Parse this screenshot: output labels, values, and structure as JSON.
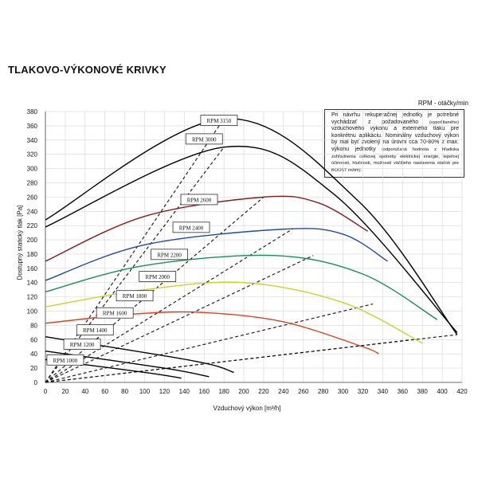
{
  "title": "TLAKOVO-VÝKONOVÉ KRIVKY",
  "note": {
    "header": "RPM - otáčky/min",
    "line1": "Pri návrhu rekuperačnej jednotky je potrebné vychádzať z požadovaného",
    "line1_small": "(vypočítaného)",
    "line2": "vzduchového výkonu a externého tlaku pre konkrétnu aplikáciu. Nominálny vzduchový výkon by mal byť zvolený na úrovni cca 70-80% z max. výkonu jednotky",
    "line2_small": "(odporúčaná hodnota z hľadiska zohľadnenia celkovej spotreby elektrickej energie, tepelnej účinnosti, hlučnosti, možnosti väčšieho nastavenia otáčok pre BOOST režim)."
  },
  "chart_data": {
    "type": "line",
    "xlabel": "Vzduchový výkon [m³/h]",
    "ylabel": "Dostupný statický tlak [Pa]",
    "xlim": [
      0,
      420
    ],
    "ylim": [
      0,
      380
    ],
    "xticks": [
      0,
      20,
      40,
      60,
      80,
      100,
      120,
      140,
      160,
      180,
      200,
      220,
      240,
      260,
      280,
      300,
      320,
      340,
      360,
      380,
      400,
      420
    ],
    "yticks": [
      0,
      20,
      40,
      60,
      80,
      100,
      120,
      140,
      160,
      180,
      200,
      220,
      240,
      260,
      280,
      300,
      320,
      340,
      360,
      380
    ],
    "grid": true,
    "fan_curves": [
      {
        "name": "RPM 1000",
        "color": "#000000",
        "points": [
          [
            0,
            32
          ],
          [
            100,
            14
          ],
          [
            137,
            6
          ]
        ]
      },
      {
        "name": "RPM 1200",
        "color": "#000000",
        "points": [
          [
            0,
            44
          ],
          [
            120,
            20
          ],
          [
            165,
            8
          ]
        ]
      },
      {
        "name": "RPM 1400",
        "color": "#000000",
        "points": [
          [
            0,
            64
          ],
          [
            150,
            30
          ],
          [
            190,
            14
          ]
        ]
      },
      {
        "name": "RPM 1600",
        "color": "#e2401d",
        "points": [
          [
            0,
            83
          ],
          [
            90,
            96
          ],
          [
            160,
            98
          ],
          [
            240,
            85
          ],
          [
            320,
            50
          ],
          [
            336,
            40
          ]
        ]
      },
      {
        "name": "RPM 1800",
        "color": "#c7d522",
        "points": [
          [
            0,
            106
          ],
          [
            100,
            130
          ],
          [
            200,
            140
          ],
          [
            300,
            112
          ],
          [
            380,
            55
          ]
        ]
      },
      {
        "name": "RPM 2000",
        "color": "#149154",
        "points": [
          [
            0,
            127
          ],
          [
            100,
            164
          ],
          [
            230,
            178
          ],
          [
            320,
            152
          ],
          [
            395,
            88
          ]
        ]
      },
      {
        "name": "RPM 2200",
        "color": "#1f4aa7",
        "points": [
          [
            0,
            143
          ],
          [
            100,
            193
          ],
          [
            240,
            215
          ],
          [
            300,
            208
          ],
          [
            345,
            170
          ]
        ]
      },
      {
        "name": "RPM 2400",
        "color": "#8b1a1a",
        "points": [
          [
            0,
            170
          ],
          [
            100,
            233
          ],
          [
            220,
            260
          ],
          [
            275,
            252
          ],
          [
            325,
            212
          ]
        ]
      },
      {
        "name": "RPM 3000",
        "color": "#000000",
        "points": [
          [
            0,
            218
          ],
          [
            180,
            330
          ],
          [
            290,
            265
          ],
          [
            415,
            70
          ]
        ]
      },
      {
        "name": "RPM 3150",
        "color": "#000000",
        "points": [
          [
            0,
            228
          ],
          [
            180,
            370
          ],
          [
            315,
            255
          ],
          [
            415,
            67
          ]
        ]
      }
    ],
    "system_curves": [
      {
        "points": [
          [
            0,
            0
          ],
          [
            180,
            370
          ]
        ]
      },
      {
        "points": [
          [
            0,
            0
          ],
          [
            180,
            330
          ]
        ]
      },
      {
        "points": [
          [
            0,
            0
          ],
          [
            220,
            260
          ]
        ]
      },
      {
        "points": [
          [
            0,
            0
          ],
          [
            250,
            216
          ]
        ]
      },
      {
        "points": [
          [
            0,
            0
          ],
          [
            270,
            178
          ]
        ]
      },
      {
        "points": [
          [
            0,
            0
          ],
          [
            330,
            110
          ]
        ]
      },
      {
        "points": [
          [
            0,
            0
          ],
          [
            370,
            60
          ]
        ]
      },
      {
        "points": [
          [
            0,
            0
          ],
          [
            415,
            67
          ]
        ]
      }
    ],
    "labels": [
      {
        "text": "RPM 3150",
        "x": 175,
        "y": 367
      },
      {
        "text": "RPM 3000",
        "x": 160,
        "y": 341
      },
      {
        "text": "RPM 2600",
        "x": 155,
        "y": 256
      },
      {
        "text": "RPM 2400",
        "x": 147,
        "y": 217
      },
      {
        "text": "RPM 2200",
        "x": 125,
        "y": 179
      },
      {
        "text": "RPM 2000",
        "x": 113,
        "y": 148
      },
      {
        "text": "RPM 1800",
        "x": 90,
        "y": 121
      },
      {
        "text": "RPM 1600",
        "x": 70,
        "y": 97
      },
      {
        "text": "RPM 1400",
        "x": 50,
        "y": 73
      },
      {
        "text": "RPM 1200",
        "x": 37,
        "y": 53
      },
      {
        "text": "RPM 1000",
        "x": 20,
        "y": 31
      }
    ]
  }
}
